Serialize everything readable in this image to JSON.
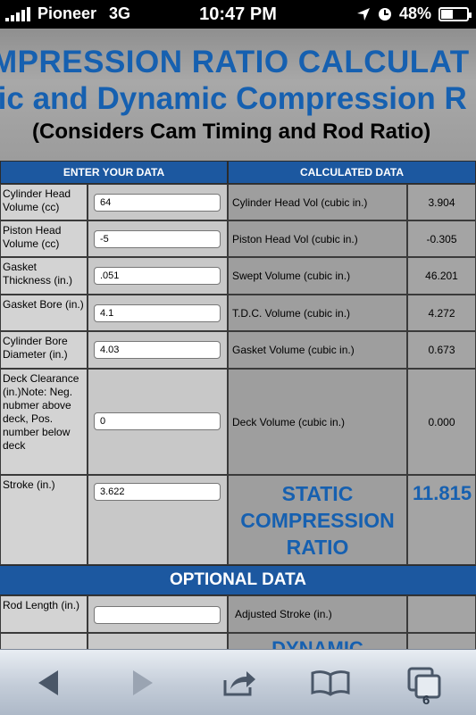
{
  "status_bar": {
    "carrier": "Pioneer",
    "network": "3G",
    "time": "10:47 PM",
    "battery_percent": "48%",
    "battery_level": 0.48,
    "signal_bars": 4
  },
  "header": {
    "title_line1": "MPRESSION RATIO CALCULAT",
    "title_line2": "tic and Dynamic Compression R",
    "subtitle": "(Considers Cam Timing and Rod Ratio)"
  },
  "columns": {
    "enter": "ENTER YOUR DATA",
    "calculated": "CALCULATED DATA"
  },
  "rows": [
    {
      "label": "Cylinder Head Volume (cc)",
      "input": "64",
      "calc_label": "Cylinder Head Vol (cubic in.)",
      "calc_value": "3.904"
    },
    {
      "label": "Piston Head Volume (cc)",
      "input": "-5",
      "calc_label": "Piston Head Vol (cubic in.)",
      "calc_value": "-0.305"
    },
    {
      "label": "Gasket Thickness (in.)",
      "input": ".051",
      "calc_label": "Swept Volume (cubic in.)",
      "calc_value": "46.201"
    },
    {
      "label": "Gasket Bore (in.)",
      "input": "4.1",
      "calc_label": "T.D.C. Volume (cubic in.)",
      "calc_value": "4.272"
    },
    {
      "label": "Cylinder Bore Diameter (in.)",
      "input": "4.03",
      "calc_label": "Gasket Volume (cubic in.)",
      "calc_value": "0.673"
    },
    {
      "label": "Deck Clearance (in.)Note: Neg. nubmer above deck, Pos. number below deck",
      "input": "0",
      "calc_label": "Deck Volume (cubic in.)",
      "calc_value": "0.000"
    }
  ],
  "stroke": {
    "label": "Stroke (in.)",
    "input": "3.622",
    "result_line1": "STATIC",
    "result_line2": "COMPRESSION",
    "result_line3": "RATIO",
    "result_value": "11.815"
  },
  "optional": {
    "heading": "OPTIONAL DATA",
    "rod_label": "Rod Length (in.)",
    "rod_input": "",
    "adjusted_label": "Adjusted Stroke (in.)",
    "dynamic_label": "DYNAMIC"
  },
  "toolbar": {
    "tabs_count": "6"
  }
}
